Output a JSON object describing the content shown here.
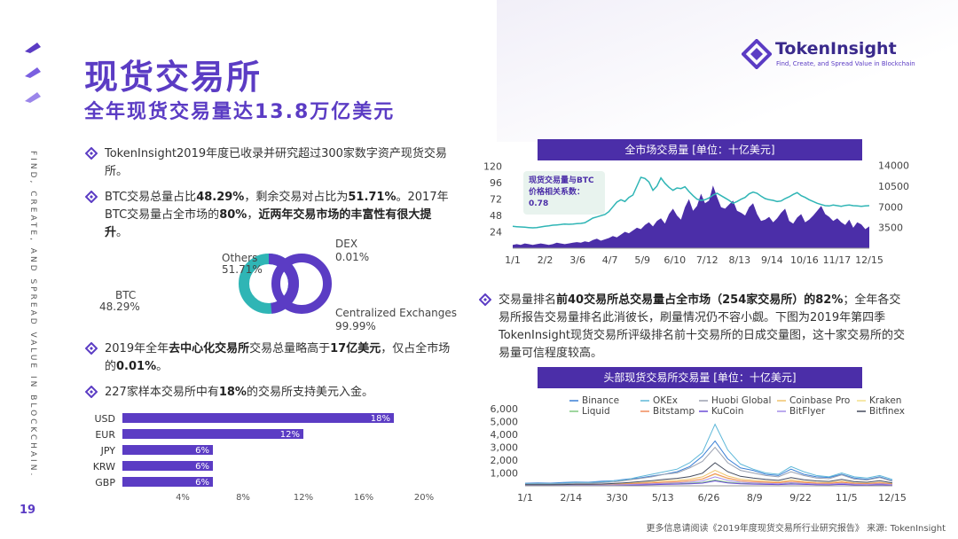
{
  "header": {
    "title": "现货交易所",
    "subtitle": "全年现货交易量达13.8万亿美元"
  },
  "brand": {
    "name": "TokenInsight",
    "tagline": "Find, Create, and Spread Value in Blockchain"
  },
  "side_slogan": "FIND, CREATE, AND SPREAD VALUE IN BLOCKCHAIN.",
  "page_number": "19",
  "bullets": {
    "b1": {
      "text": "TokenInsight2019年度已收录并研究超过300家数字资产现货交易所。"
    },
    "b2": {
      "t1": "BTC交易总量占比",
      "v1": "48.29%",
      "t2": "，剩余交易对占比为",
      "v2": "51.71%",
      "t3": "。2017年BTC交易量占全市场的",
      "v3": "80%",
      "t4": "，",
      "v4": "近两年交易市场的丰富性有很大提升",
      "t5": "。"
    },
    "b3": {
      "t1": "2019年全年",
      "v1": "去中心化交易所",
      "t2": "交易总量略高于",
      "v2": "17亿美元",
      "t3": "，仅占全市场的",
      "v3": "0.01%",
      "t4": "。"
    },
    "b4": {
      "t1": "227家样本交易所中有",
      "v1": "18%",
      "t2": "的交易所支持美元入金。"
    },
    "b5": {
      "t1": "交易量排名",
      "v1": "前40交易所总交易量占全市场（254家交易所）的82%",
      "t2": "；全年各交易所报告交易量排名此消彼长，刷量情况仍不容小觑。下图为2019年第四季TokenInsight现货交易所评级排名前十交易所的日成交量图，这十家交易所的交易量可信程度较高。"
    }
  },
  "donuts": {
    "pair": {
      "others_label": "Others",
      "others_value": "51.71%",
      "btc_label": "BTC",
      "btc_value": "48.29%",
      "others_pct": 51.71,
      "btc_pct": 48.29,
      "color_btc": "#5b3cc4",
      "color_others": "#2fb5b5"
    },
    "type": {
      "dex_label": "DEX",
      "dex_value": "0.01%",
      "cex_label": "Centralized Exchanges",
      "cex_value": "99.99%"
    }
  },
  "chart_data": [
    {
      "type": "bar",
      "orientation": "horizontal",
      "title": "",
      "categories": [
        "USD",
        "EUR",
        "JPY",
        "KRW",
        "GBP"
      ],
      "values": [
        18,
        12,
        6,
        6,
        6
      ],
      "value_labels": [
        "18%",
        "12%",
        "6%",
        "6%",
        "6%"
      ],
      "xlim": [
        0,
        20
      ],
      "xticks": [
        "4%",
        "8%",
        "12%",
        "16%",
        "20%"
      ],
      "xtick_values": [
        4,
        8,
        12,
        16,
        20
      ]
    },
    {
      "type": "area",
      "title": "全市场交易量 [单位：十亿美元]",
      "x_ticks": [
        "1/1",
        "2/2",
        "3/6",
        "4/7",
        "5/9",
        "6/10",
        "7/12",
        "8/13",
        "9/14",
        "10/16",
        "11/17",
        "12/15"
      ],
      "y_left_ticks": [
        "120",
        "96",
        "72",
        "48",
        "24"
      ],
      "y_left_values": [
        120,
        96,
        72,
        48,
        24
      ],
      "ylim_left": [
        0,
        130
      ],
      "y_right_ticks": [
        "14000",
        "10500",
        "7000",
        "3500"
      ],
      "y_right_values": [
        14000,
        10500,
        7000,
        3500
      ],
      "ylim_right": [
        0,
        15000
      ],
      "annotation": "现货交易量与BTC价格相关系数：0.78",
      "volume_series": [
        5,
        6,
        5,
        7,
        6,
        5,
        6,
        7,
        6,
        5,
        6,
        8,
        7,
        6,
        7,
        8,
        9,
        8,
        10,
        9,
        12,
        14,
        11,
        13,
        15,
        18,
        16,
        20,
        24,
        22,
        26,
        30,
        28,
        34,
        38,
        32,
        40,
        44,
        36,
        50,
        58,
        48,
        42,
        60,
        72,
        55,
        62,
        80,
        66,
        70,
        92,
        75,
        60,
        58,
        64,
        70,
        55,
        52,
        48,
        60,
        66,
        50,
        40,
        42,
        46,
        38,
        44,
        52,
        58,
        40,
        36,
        45,
        50,
        38,
        42,
        48,
        55,
        62,
        50,
        46,
        40,
        44,
        38,
        34,
        42,
        30,
        38,
        35,
        28,
        32
      ],
      "price_series": [
        3700,
        3650,
        3600,
        3550,
        3500,
        3450,
        3500,
        3600,
        3700,
        3800,
        3900,
        3950,
        4000,
        4100,
        4050,
        4100,
        4150,
        4200,
        4300,
        4700,
        5100,
        5300,
        5500,
        5700,
        6200,
        7000,
        7800,
        8200,
        7900,
        8600,
        9000,
        10500,
        12000,
        11800,
        11200,
        9800,
        10500,
        11900,
        11000,
        10300,
        9800,
        10200,
        10100,
        10400,
        9600,
        8900,
        8300,
        8100,
        8200,
        8500,
        9000,
        9300,
        8900,
        8500,
        8100,
        7600,
        7900,
        8300,
        8600,
        9200,
        9500,
        9300,
        8800,
        8400,
        8200,
        8100,
        7900,
        8000,
        8400,
        8700,
        9100,
        9400,
        8900,
        8600,
        8200,
        7900,
        7600,
        7400,
        7200,
        7150,
        7300,
        7200,
        7100,
        7250,
        7300,
        7200,
        7150,
        7100,
        7150,
        7200
      ]
    },
    {
      "type": "line",
      "title": "头部现货交易所交易量 [单位：十亿美元]",
      "x_ticks": [
        "1/1",
        "2/14",
        "3/30",
        "5/13",
        "6/26",
        "8/9",
        "9/22",
        "11/5",
        "12/15"
      ],
      "y_ticks": [
        "6,000",
        "5,000",
        "4,000",
        "3,000",
        "2,000",
        "1,000"
      ],
      "y_values": [
        6000,
        5000,
        4000,
        3000,
        2000,
        1000
      ],
      "ylim": [
        0,
        6500
      ],
      "series": [
        {
          "name": "Binance",
          "color": "#3a7fd5",
          "values": [
            200,
            220,
            210,
            260,
            300,
            280,
            350,
            400,
            520,
            600,
            760,
            900,
            1100,
            1500,
            2300,
            3500,
            2100,
            1400,
            1200,
            900,
            800,
            1300,
            900,
            700,
            650,
            900,
            600,
            500,
            700,
            400
          ]
        },
        {
          "name": "OKEx",
          "color": "#5fb8d9",
          "values": [
            150,
            180,
            170,
            200,
            260,
            240,
            300,
            380,
            480,
            700,
            900,
            1100,
            1300,
            1800,
            2600,
            4800,
            2800,
            1700,
            1300,
            1000,
            900,
            1500,
            1100,
            800,
            700,
            1000,
            700,
            600,
            800,
            500
          ]
        },
        {
          "name": "Huobi Global",
          "color": "#9aa0b0",
          "values": [
            120,
            140,
            130,
            160,
            200,
            190,
            240,
            300,
            420,
            560,
            700,
            900,
            1000,
            1400,
            1900,
            3000,
            1800,
            1200,
            1000,
            800,
            700,
            1100,
            800,
            600,
            550,
            850,
            520,
            450,
            650,
            350
          ]
        },
        {
          "name": "Coinbase Pro",
          "color": "#f0c36a",
          "values": [
            60,
            70,
            65,
            80,
            90,
            85,
            100,
            130,
            180,
            240,
            300,
            380,
            420,
            520,
            700,
            1200,
            760,
            520,
            430,
            360,
            300,
            460,
            340,
            260,
            240,
            360,
            220,
            190,
            280,
            150
          ]
        },
        {
          "name": "Kraken",
          "color": "#f3e08a",
          "values": [
            40,
            45,
            42,
            50,
            60,
            58,
            70,
            90,
            120,
            160,
            200,
            260,
            300,
            380,
            520,
            900,
            560,
            380,
            310,
            260,
            220,
            330,
            250,
            190,
            170,
            260,
            160,
            140,
            200,
            110
          ]
        },
        {
          "name": "Liquid",
          "color": "#7fc97f",
          "values": [
            30,
            32,
            31,
            35,
            40,
            38,
            45,
            55,
            70,
            90,
            110,
            140,
            160,
            200,
            260,
            450,
            280,
            190,
            160,
            130,
            110,
            170,
            130,
            100,
            90,
            130,
            85,
            70,
            100,
            60
          ]
        },
        {
          "name": "Bitstamp",
          "color": "#f08a5b",
          "values": [
            50,
            55,
            52,
            60,
            70,
            68,
            80,
            100,
            140,
            180,
            220,
            280,
            320,
            400,
            540,
            950,
            600,
            400,
            330,
            280,
            240,
            350,
            270,
            210,
            190,
            280,
            180,
            150,
            220,
            120
          ]
        },
        {
          "name": "KuCoin",
          "color": "#6b4cd6",
          "values": [
            20,
            22,
            21,
            25,
            30,
            28,
            34,
            40,
            55,
            70,
            90,
            110,
            130,
            160,
            210,
            380,
            230,
            160,
            130,
            110,
            95,
            140,
            110,
            85,
            75,
            110,
            70,
            60,
            85,
            50
          ]
        },
        {
          "name": "BitFlyer",
          "color": "#a48ee8",
          "values": [
            35,
            38,
            36,
            42,
            50,
            48,
            58,
            72,
            95,
            120,
            150,
            190,
            220,
            280,
            380,
            700,
            420,
            280,
            230,
            190,
            160,
            240,
            180,
            140,
            125,
            190,
            120,
            100,
            150,
            80
          ]
        },
        {
          "name": "Bitfinex",
          "color": "#444b5c",
          "values": [
            80,
            90,
            85,
            100,
            120,
            115,
            140,
            180,
            240,
            320,
            400,
            500,
            580,
            720,
            980,
            1800,
            1100,
            740,
            600,
            500,
            420,
            640,
            480,
            380,
            340,
            500,
            320,
            280,
            400,
            220
          ]
        }
      ]
    }
  ],
  "footer": {
    "text": "更多信息请阅读《2019年度现货交易所行业研究报告》  来源: TokenInsight"
  },
  "colors": {
    "accent": "#5b3cc4",
    "band": "#4b2ea8",
    "teal": "#2fb5b5"
  }
}
